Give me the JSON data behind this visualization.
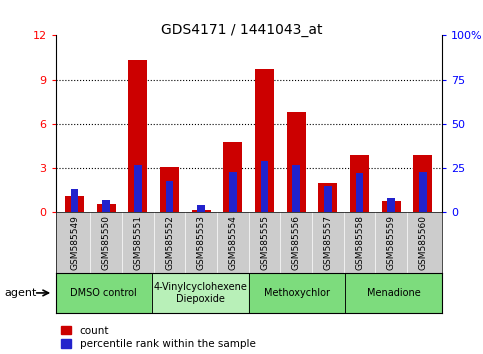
{
  "title": "GDS4171 / 1441043_at",
  "samples": [
    "GSM585549",
    "GSM585550",
    "GSM585551",
    "GSM585552",
    "GSM585553",
    "GSM585554",
    "GSM585555",
    "GSM585556",
    "GSM585557",
    "GSM585558",
    "GSM585559",
    "GSM585560"
  ],
  "red_values": [
    1.1,
    0.6,
    10.3,
    3.1,
    0.15,
    4.8,
    9.7,
    6.8,
    2.0,
    3.9,
    0.8,
    3.9
  ],
  "blue_values": [
    13,
    7,
    27,
    18,
    4,
    23,
    29,
    27,
    15,
    22,
    8,
    23
  ],
  "groups": [
    {
      "label": "DMSO control",
      "start": 0,
      "end": 3,
      "color": "#7ddc7d"
    },
    {
      "label": "4-Vinylcyclohexene\nDiepoxide",
      "start": 3,
      "end": 6,
      "color": "#b8f0b8"
    },
    {
      "label": "Methoxychlor",
      "start": 6,
      "end": 9,
      "color": "#7ddc7d"
    },
    {
      "label": "Menadione",
      "start": 9,
      "end": 12,
      "color": "#7ddc7d"
    }
  ],
  "ylim_left": [
    0,
    12
  ],
  "ylim_right": [
    0,
    100
  ],
  "yticks_left": [
    0,
    3,
    6,
    9,
    12
  ],
  "yticks_right": [
    0,
    25,
    50,
    75,
    100
  ],
  "yticklabels_right": [
    "0",
    "25",
    "50",
    "75",
    "100%"
  ],
  "bar_color": "#cc0000",
  "blue_color": "#2222cc",
  "bg_color": "#cccccc",
  "bar_width": 0.6,
  "legend_items": [
    {
      "color": "#cc0000",
      "label": "count"
    },
    {
      "color": "#2222cc",
      "label": "percentile rank within the sample"
    }
  ]
}
